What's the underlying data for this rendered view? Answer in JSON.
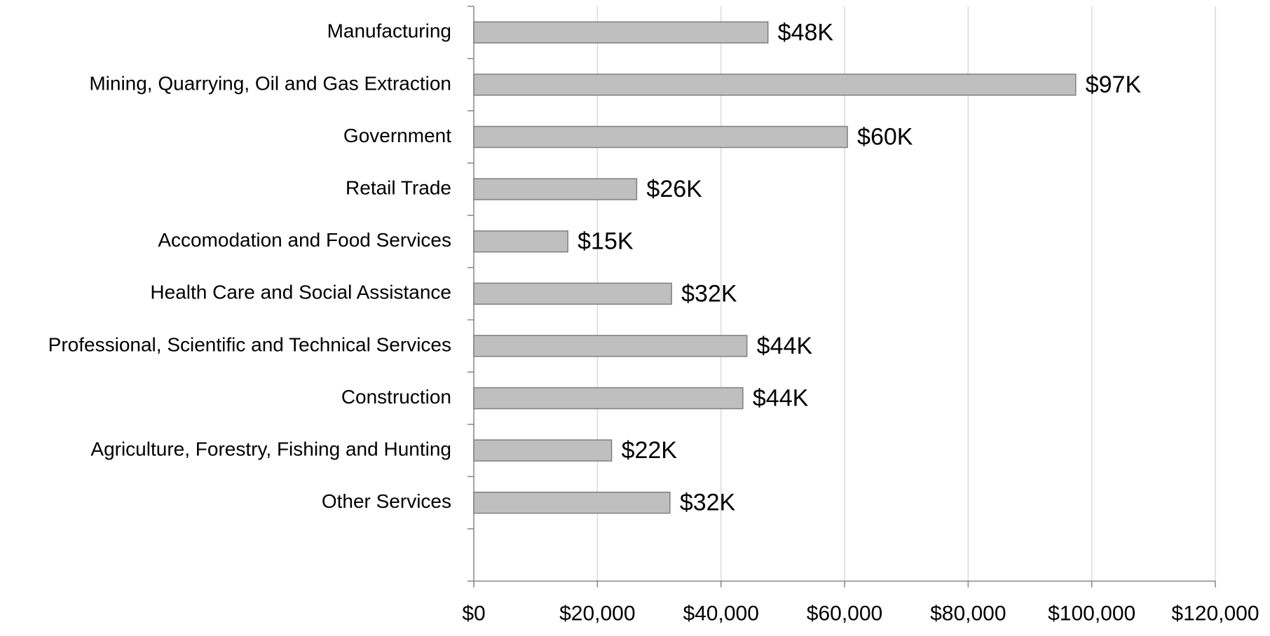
{
  "chart_data": {
    "type": "bar",
    "orientation": "horizontal",
    "categories": [
      "Manufacturing",
      "Mining, Quarrying, Oil and Gas Extraction",
      "Government",
      "Retail Trade",
      "Accomodation and Food Services",
      "Health Care and Social Assistance",
      "Professional, Scientific and Technical Services",
      "Construction",
      "Agriculture, Forestry, Fishing and Hunting",
      "Other Services"
    ],
    "values": [
      47600,
      97400,
      60459,
      26360,
      15213,
      32000,
      44197,
      43541,
      22295,
      31738
    ],
    "value_labels": [
      "$48K",
      "$97K",
      "$60K",
      "$26K",
      "$15K",
      "$32K",
      "$44K",
      "$44K",
      "$22K",
      "$32K"
    ],
    "color": "#bfbfbf",
    "xlim": [
      0,
      120000
    ],
    "xticks": [
      {
        "value": 0,
        "label": "$0"
      },
      {
        "value": 20000,
        "label": "$20,000"
      },
      {
        "value": 40000,
        "label": "$40,000"
      },
      {
        "value": 60000,
        "label": "$60,000"
      },
      {
        "value": 80000,
        "label": "$80,000"
      },
      {
        "value": 100000,
        "label": "$100,000"
      },
      {
        "value": 120000,
        "label": "$120,000"
      }
    ],
    "grid": true
  }
}
